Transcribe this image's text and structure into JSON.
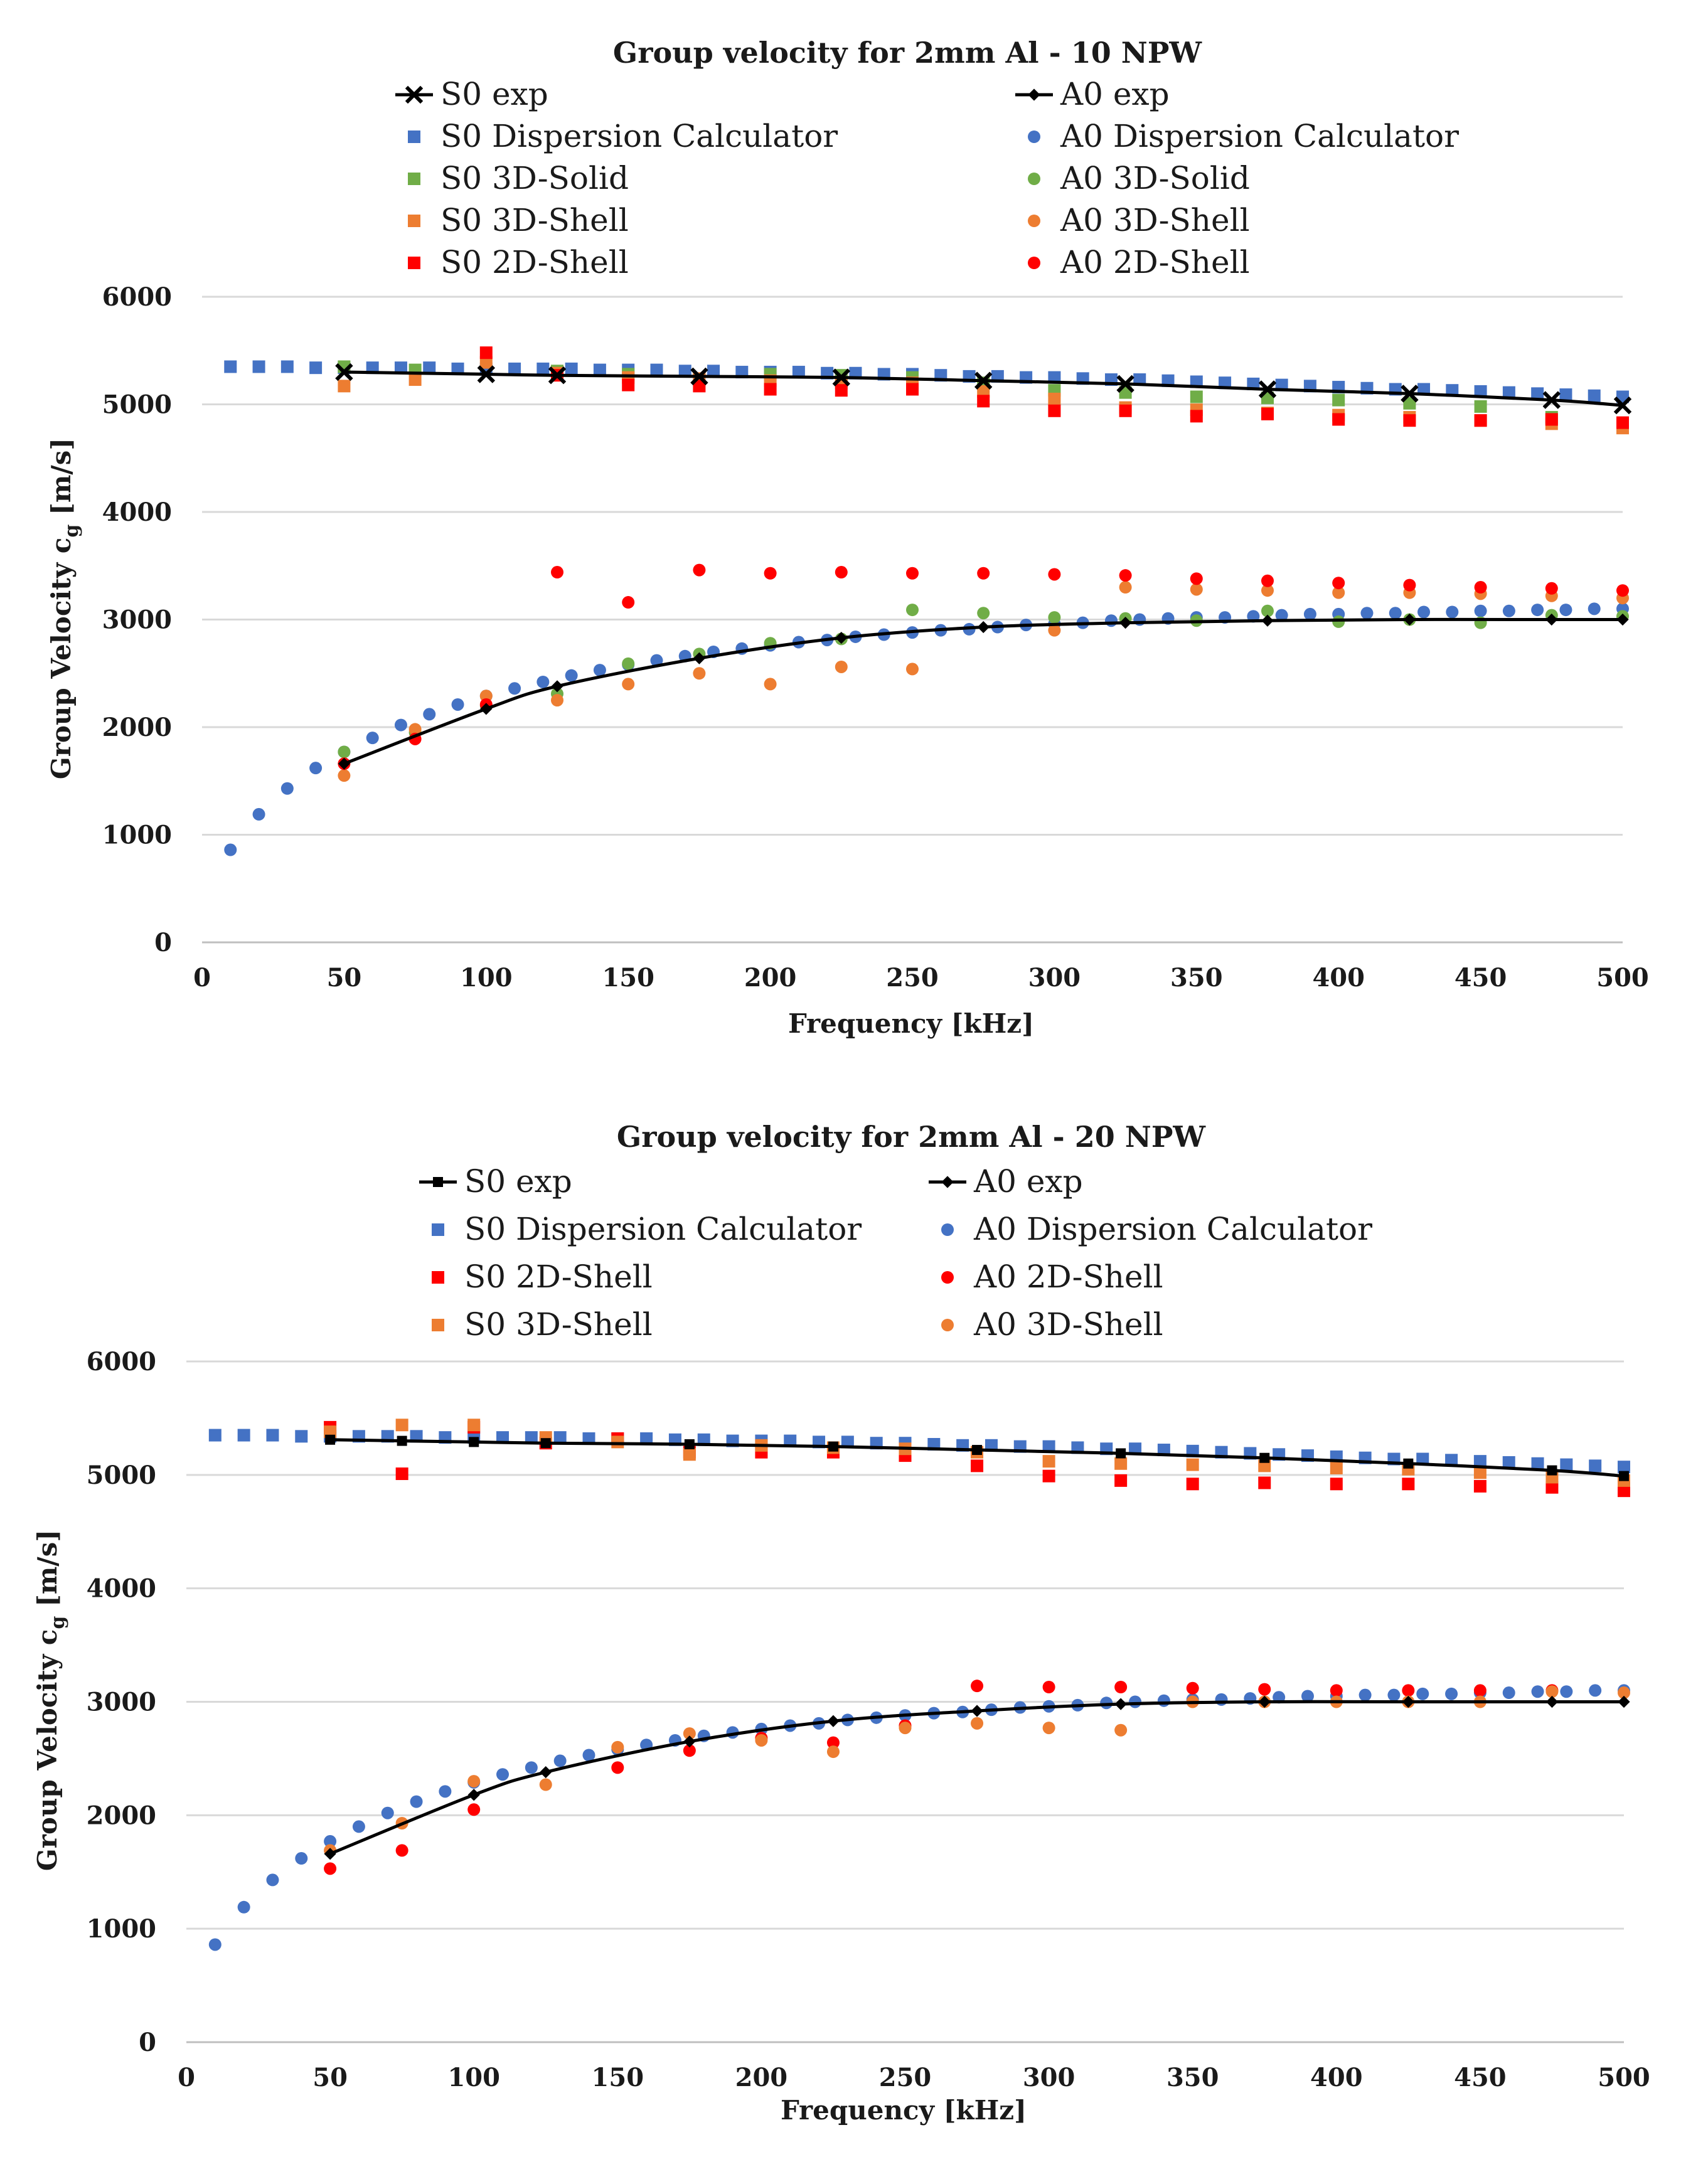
{
  "colors": {
    "exp": "#000000",
    "dispersion_calculator": "#4472c4",
    "solid_3d": "#70ad47",
    "shell_3d": "#ed7d31",
    "shell_2d": "#ff0000"
  },
  "chart_data": [
    {
      "type": "scatter",
      "title": "Group velocity for 2mm Al - 10 NPW",
      "xlabel": "Frequency [kHz]",
      "ylabel_main": "Group Velocity c",
      "ylabel_sub": "g",
      "ylabel_unit": " [m/s]",
      "xlim": [
        0,
        500
      ],
      "ylim": [
        0,
        6000
      ],
      "xticks": [
        "0",
        "50",
        "100",
        "150",
        "200",
        "250",
        "300",
        "350",
        "400",
        "450",
        "500"
      ],
      "yticks": [
        "0",
        "1000",
        "2000",
        "3000",
        "4000",
        "5000",
        "6000"
      ],
      "grid": "horizontal",
      "series": [
        {
          "name": "S0 exp",
          "marker": "x",
          "line": true,
          "color": "#000000",
          "x": [
            50,
            100,
            125,
            175,
            225,
            275,
            325,
            375,
            425,
            475,
            500
          ],
          "y": [
            5300,
            5280,
            5270,
            5260,
            5250,
            5220,
            5190,
            5140,
            5100,
            5040,
            4990
          ]
        },
        {
          "name": "A0 exp",
          "marker": "diamond",
          "line": true,
          "color": "#000000",
          "x": [
            50,
            100,
            125,
            175,
            225,
            275,
            325,
            375,
            425,
            475,
            500
          ],
          "y": [
            1660,
            2170,
            2380,
            2640,
            2830,
            2930,
            2970,
            2990,
            3000,
            3000,
            3000
          ]
        },
        {
          "name": "S0 Dispersion Calculator",
          "marker": "square",
          "color": "#4472c4",
          "x": [
            10,
            20,
            30,
            40,
            50,
            60,
            70,
            80,
            90,
            100,
            110,
            120,
            130,
            140,
            150,
            160,
            170,
            180,
            190,
            200,
            210,
            220,
            230,
            240,
            250,
            260,
            270,
            280,
            290,
            300,
            310,
            320,
            330,
            340,
            350,
            360,
            370,
            380,
            390,
            400,
            410,
            420,
            430,
            440,
            450,
            460,
            470,
            480,
            490,
            500
          ],
          "y": [
            5350,
            5350,
            5350,
            5340,
            5340,
            5340,
            5340,
            5340,
            5330,
            5330,
            5330,
            5330,
            5330,
            5320,
            5320,
            5320,
            5310,
            5310,
            5300,
            5300,
            5300,
            5290,
            5290,
            5280,
            5280,
            5270,
            5260,
            5260,
            5250,
            5250,
            5240,
            5230,
            5230,
            5220,
            5210,
            5200,
            5190,
            5180,
            5170,
            5160,
            5150,
            5140,
            5140,
            5130,
            5120,
            5110,
            5100,
            5090,
            5080,
            5070
          ]
        },
        {
          "name": "A0 Dispersion Calculator",
          "marker": "circle",
          "color": "#4472c4",
          "x": [
            10,
            20,
            30,
            40,
            50,
            60,
            70,
            80,
            90,
            100,
            110,
            120,
            130,
            140,
            150,
            160,
            170,
            180,
            190,
            200,
            210,
            220,
            230,
            240,
            250,
            260,
            270,
            280,
            290,
            300,
            310,
            320,
            330,
            340,
            350,
            360,
            370,
            380,
            390,
            400,
            410,
            420,
            430,
            440,
            450,
            460,
            470,
            480,
            490,
            500
          ],
          "y": [
            860,
            1190,
            1430,
            1620,
            1770,
            1900,
            2020,
            2120,
            2210,
            2290,
            2360,
            2420,
            2480,
            2530,
            2580,
            2620,
            2660,
            2700,
            2730,
            2760,
            2790,
            2810,
            2840,
            2860,
            2880,
            2900,
            2910,
            2930,
            2950,
            2960,
            2970,
            2990,
            3000,
            3010,
            3020,
            3020,
            3030,
            3040,
            3050,
            3050,
            3060,
            3060,
            3070,
            3070,
            3080,
            3080,
            3090,
            3090,
            3100,
            3100
          ]
        },
        {
          "name": "S0 3D-Solid",
          "marker": "square",
          "color": "#70ad47",
          "x": [
            50,
            75,
            125,
            150,
            200,
            225,
            250,
            275,
            300,
            325,
            350,
            375,
            400,
            425,
            450,
            475
          ],
          "y": [
            5350,
            5320,
            5310,
            5280,
            5280,
            5270,
            5250,
            5200,
            5130,
            5110,
            5070,
            5060,
            5040,
            5010,
            4980,
            4880
          ]
        },
        {
          "name": "A0 3D-Solid",
          "marker": "circle",
          "color": "#70ad47",
          "x": [
            50,
            75,
            100,
            125,
            150,
            175,
            200,
            225,
            250,
            275,
            300,
            325,
            350,
            375,
            400,
            425,
            450,
            475,
            500
          ],
          "y": [
            1770,
            1950,
            2200,
            2310,
            2590,
            2680,
            2780,
            2820,
            3090,
            3060,
            3020,
            3010,
            2990,
            3080,
            2980,
            3000,
            2970,
            3040,
            3030
          ]
        },
        {
          "name": "S0 3D-Shell",
          "marker": "square",
          "color": "#ed7d31",
          "x": [
            50,
            75,
            100,
            125,
            150,
            175,
            200,
            225,
            250,
            275,
            300,
            325,
            350,
            375,
            400,
            425,
            450,
            475,
            500
          ],
          "y": [
            5170,
            5230,
            5390,
            5290,
            5250,
            5240,
            5220,
            5200,
            5200,
            5120,
            5050,
            4970,
            4950,
            4920,
            4900,
            4880,
            4850,
            4820,
            4780
          ]
        },
        {
          "name": "A0 3D-Shell",
          "marker": "circle",
          "color": "#ed7d31",
          "x": [
            50,
            75,
            100,
            125,
            150,
            175,
            200,
            225,
            250,
            300,
            325,
            350,
            375,
            400,
            425,
            450,
            475,
            500
          ],
          "y": [
            1550,
            1980,
            2290,
            2250,
            2400,
            2500,
            2400,
            2560,
            2540,
            2900,
            3300,
            3280,
            3270,
            3250,
            3250,
            3240,
            3220,
            3200
          ]
        },
        {
          "name": "S0 2D-Shell",
          "marker": "square",
          "color": "#ff0000",
          "x": [
            100,
            125,
            150,
            175,
            200,
            225,
            250,
            275,
            300,
            325,
            350,
            375,
            400,
            425,
            450,
            475,
            500
          ],
          "y": [
            5480,
            5270,
            5180,
            5170,
            5140,
            5130,
            5140,
            5030,
            4940,
            4940,
            4890,
            4910,
            4860,
            4850,
            4850,
            4860,
            4830
          ]
        },
        {
          "name": "A0 2D-Shell",
          "marker": "circle",
          "color": "#ff0000",
          "x": [
            50,
            75,
            100,
            125,
            150,
            175,
            200,
            225,
            250,
            275,
            300,
            325,
            350,
            375,
            400,
            425,
            450,
            475,
            500
          ],
          "y": [
            1660,
            1890,
            2210,
            3440,
            3160,
            3460,
            3430,
            3440,
            3430,
            3430,
            3420,
            3410,
            3380,
            3360,
            3340,
            3320,
            3300,
            3290,
            3270
          ]
        }
      ]
    },
    {
      "type": "scatter",
      "title": "Group velocity for 2mm Al - 20 NPW",
      "xlabel": "Frequency [kHz]",
      "ylabel_main": "Group Velocity c",
      "ylabel_sub": "g",
      "ylabel_unit": " [m/s]",
      "xlim": [
        0,
        500
      ],
      "ylim": [
        0,
        6000
      ],
      "xticks": [
        "0",
        "50",
        "100",
        "150",
        "200",
        "250",
        "300",
        "350",
        "400",
        "450",
        "500"
      ],
      "yticks": [
        "0",
        "1000",
        "2000",
        "3000",
        "4000",
        "5000",
        "6000"
      ],
      "grid": "horizontal",
      "series": [
        {
          "name": "S0 exp",
          "marker": "square",
          "line": true,
          "color": "#000000",
          "x": [
            50,
            75,
            100,
            125,
            175,
            225,
            275,
            325,
            375,
            425,
            475,
            500
          ],
          "y": [
            5310,
            5300,
            5290,
            5280,
            5270,
            5250,
            5220,
            5190,
            5150,
            5100,
            5040,
            4990
          ]
        },
        {
          "name": "A0 exp",
          "marker": "diamond",
          "line": true,
          "color": "#000000",
          "x": [
            50,
            100,
            125,
            175,
            225,
            275,
            325,
            375,
            425,
            475,
            500
          ],
          "y": [
            1660,
            2180,
            2380,
            2650,
            2830,
            2920,
            2980,
            3000,
            3000,
            3000,
            3000
          ]
        },
        {
          "name": "S0 Dispersion Calculator",
          "marker": "square",
          "color": "#4472c4",
          "x": [
            10,
            20,
            30,
            40,
            50,
            60,
            70,
            80,
            90,
            100,
            110,
            120,
            130,
            140,
            150,
            160,
            170,
            180,
            190,
            200,
            210,
            220,
            230,
            240,
            250,
            260,
            270,
            280,
            290,
            300,
            310,
            320,
            330,
            340,
            350,
            360,
            370,
            380,
            390,
            400,
            410,
            420,
            430,
            440,
            450,
            460,
            470,
            480,
            490,
            500
          ],
          "y": [
            5350,
            5350,
            5350,
            5340,
            5340,
            5340,
            5340,
            5340,
            5330,
            5330,
            5330,
            5330,
            5330,
            5320,
            5320,
            5320,
            5310,
            5310,
            5300,
            5300,
            5300,
            5290,
            5290,
            5280,
            5280,
            5270,
            5260,
            5260,
            5250,
            5250,
            5240,
            5230,
            5230,
            5220,
            5210,
            5200,
            5190,
            5180,
            5170,
            5160,
            5150,
            5140,
            5140,
            5130,
            5120,
            5110,
            5100,
            5090,
            5080,
            5070
          ]
        },
        {
          "name": "A0 Dispersion Calculator",
          "marker": "circle",
          "color": "#4472c4",
          "x": [
            10,
            20,
            30,
            40,
            50,
            60,
            70,
            80,
            90,
            100,
            110,
            120,
            130,
            140,
            150,
            160,
            170,
            180,
            190,
            200,
            210,
            220,
            230,
            240,
            250,
            260,
            270,
            280,
            290,
            300,
            310,
            320,
            330,
            340,
            350,
            360,
            370,
            380,
            390,
            400,
            410,
            420,
            430,
            440,
            450,
            460,
            470,
            480,
            490,
            500
          ],
          "y": [
            860,
            1190,
            1430,
            1620,
            1770,
            1900,
            2020,
            2120,
            2210,
            2290,
            2360,
            2420,
            2480,
            2530,
            2580,
            2620,
            2660,
            2700,
            2730,
            2760,
            2790,
            2810,
            2840,
            2860,
            2880,
            2900,
            2910,
            2930,
            2950,
            2960,
            2970,
            2990,
            3000,
            3010,
            3020,
            3020,
            3030,
            3040,
            3050,
            3050,
            3060,
            3060,
            3070,
            3070,
            3080,
            3080,
            3090,
            3090,
            3100,
            3100
          ]
        },
        {
          "name": "S0 2D-Shell",
          "marker": "square",
          "color": "#ff0000",
          "x": [
            50,
            75,
            100,
            125,
            150,
            175,
            200,
            225,
            250,
            275,
            300,
            325,
            350,
            375,
            400,
            425,
            450,
            475,
            500
          ],
          "y": [
            5420,
            5010,
            5420,
            5280,
            5320,
            5200,
            5200,
            5200,
            5170,
            5080,
            4990,
            4950,
            4920,
            4930,
            4920,
            4920,
            4900,
            4890,
            4860
          ]
        },
        {
          "name": "A0 2D-Shell",
          "marker": "circle",
          "color": "#ff0000",
          "x": [
            50,
            75,
            100,
            150,
            175,
            200,
            225,
            250,
            275,
            300,
            325,
            350,
            375,
            400,
            425,
            450,
            475
          ],
          "y": [
            1530,
            1690,
            2050,
            2420,
            2570,
            2680,
            2640,
            2790,
            3140,
            3130,
            3130,
            3120,
            3110,
            3100,
            3100,
            3100,
            3100
          ]
        },
        {
          "name": "S0 3D-Shell",
          "marker": "square",
          "color": "#ed7d31",
          "x": [
            50,
            75,
            100,
            125,
            150,
            175,
            200,
            225,
            250,
            275,
            300,
            325,
            350,
            375,
            400,
            425,
            450,
            475,
            500
          ],
          "y": [
            5380,
            5440,
            5440,
            5330,
            5290,
            5180,
            5260,
            5240,
            5230,
            5200,
            5120,
            5100,
            5090,
            5080,
            5060,
            5050,
            5020,
            4980,
            4950
          ]
        },
        {
          "name": "A0 3D-Shell",
          "marker": "circle",
          "color": "#ed7d31",
          "x": [
            50,
            75,
            100,
            125,
            150,
            175,
            200,
            225,
            250,
            275,
            300,
            325,
            350,
            375,
            400,
            425,
            450,
            475,
            500
          ],
          "y": [
            1690,
            1930,
            2300,
            2270,
            2600,
            2720,
            2660,
            2560,
            2770,
            2810,
            2770,
            2750,
            3000,
            3000,
            3000,
            3000,
            3000,
            3090,
            3080
          ]
        }
      ]
    }
  ]
}
